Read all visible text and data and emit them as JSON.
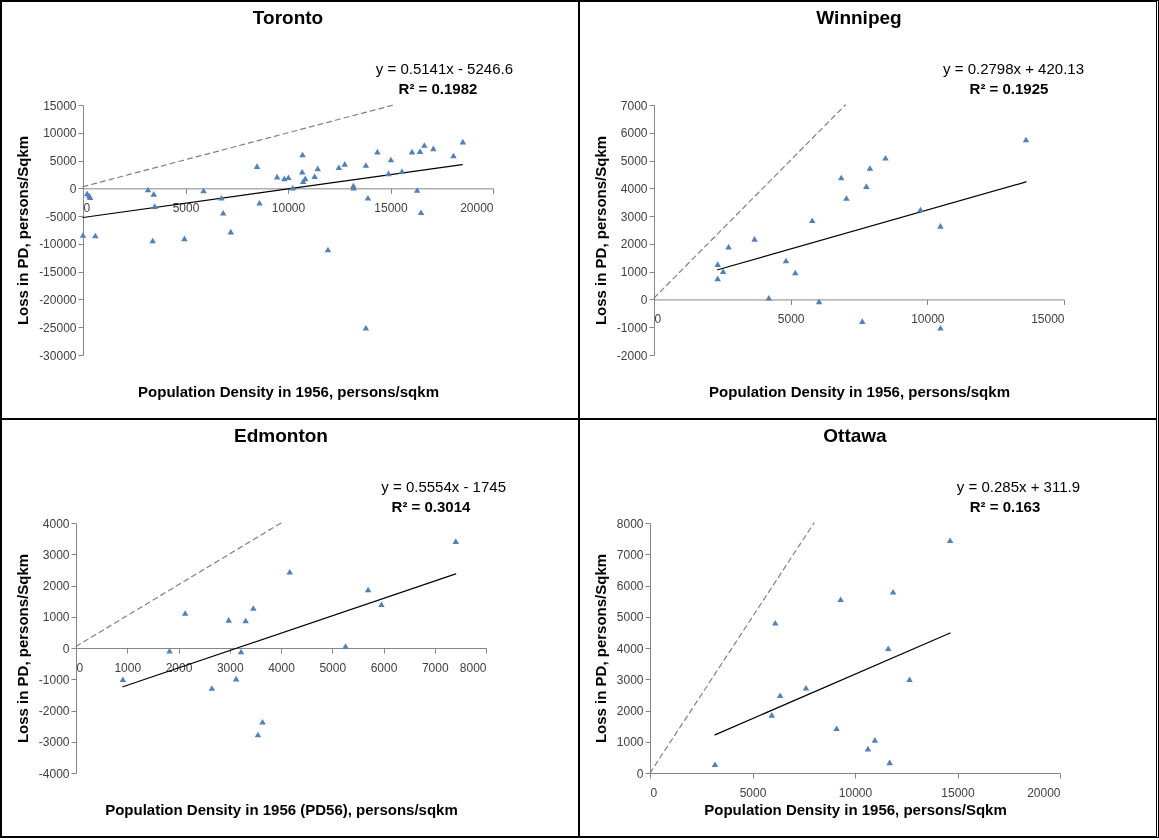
{
  "chart_data": [
    {
      "type": "scatter",
      "title": "Toronto",
      "xlabel": "Population Density in 1956, persons/sqkm",
      "ylabel": "Loss in PD, persons/Sqkm",
      "annotations": [
        "y = 0.5141x - 5246.6",
        "R² = 0.1982"
      ],
      "xlim": [
        0,
        20000
      ],
      "xticks": [
        0,
        5000,
        10000,
        15000,
        20000
      ],
      "ylim": [
        -30000,
        15000
      ],
      "yticks": [
        -30000,
        -25000,
        -20000,
        -15000,
        -10000,
        -5000,
        0,
        5000,
        10000,
        15000
      ],
      "grid": false,
      "series": [
        {
          "marker": "triangle",
          "color": "#4f81bd",
          "x": [
            0,
            200,
            300,
            350,
            600,
            3170,
            3450,
            3500,
            3400,
            4950,
            5880,
            6750,
            6840,
            7210,
            8490,
            8610,
            9470,
            9820,
            10020,
            10230,
            10710,
            10690,
            10740,
            10840,
            11300,
            11450,
            11950,
            12480,
            12770,
            13190,
            13200,
            13800,
            13900,
            13800,
            14360,
            14900,
            15020,
            15560,
            16050,
            16300,
            16440,
            16490,
            16650,
            17090,
            18070,
            18530
          ],
          "values": [
            -8400,
            -900,
            -1300,
            -1600,
            -8500,
            -200,
            -1000,
            -3200,
            -9400,
            -9000,
            -400,
            -1700,
            -4400,
            -7800,
            4000,
            -2600,
            2100,
            1800,
            2000,
            100,
            6100,
            3000,
            1300,
            1800,
            2200,
            3600,
            -11000,
            3800,
            4400,
            500,
            100,
            4200,
            -1700,
            -25100,
            6600,
            2700,
            5200,
            3100,
            6600,
            -300,
            6700,
            -4300,
            7800,
            7200,
            5900,
            8400
          ]
        },
        {
          "type": "line",
          "marker": "none",
          "color": "#000000",
          "line_style": "solid",
          "x": [
            0,
            18500
          ],
          "values": [
            -5250,
            4260
          ]
        },
        {
          "type": "line",
          "marker": "none",
          "color": "#808080",
          "line_style": "dashed",
          "x": [
            0,
            15150
          ],
          "values": [
            300,
            15000
          ]
        }
      ]
    },
    {
      "type": "scatter",
      "title": "Winnipeg",
      "xlabel": "Population Density in 1956, persons/sqkm",
      "ylabel": "Loss in PD, persons/Sqkm",
      "annotations": [
        "y = 0.2798x + 420.13",
        "R² = 0.1925"
      ],
      "xlim": [
        0,
        15000
      ],
      "xticks": [
        0,
        5000,
        10000,
        15000
      ],
      "ylim": [
        -2000,
        7000
      ],
      "yticks": [
        -2000,
        -1000,
        0,
        1000,
        2000,
        3000,
        4000,
        5000,
        6000,
        7000
      ],
      "grid": false,
      "series": [
        {
          "marker": "triangle",
          "color": "#4f81bd",
          "x": [
            2330,
            2530,
            2330,
            2730,
            3680,
            4200,
            4830,
            5170,
            5790,
            6040,
            6850,
            7040,
            7620,
            7770,
            7900,
            8470,
            9750,
            10480,
            10480,
            13610
          ],
          "values": [
            1270,
            1020,
            760,
            1900,
            2180,
            60,
            1400,
            970,
            2850,
            -70,
            4390,
            3650,
            -780,
            4080,
            4730,
            5100,
            3240,
            2650,
            -1020,
            5760
          ]
        },
        {
          "type": "line",
          "marker": "none",
          "color": "#000000",
          "line_style": "solid",
          "x": [
            2330,
            13610
          ],
          "values": [
            1070,
            4230
          ]
        },
        {
          "type": "line",
          "marker": "none",
          "color": "#808080",
          "line_style": "dashed",
          "x": [
            0,
            7000
          ],
          "values": [
            50,
            7000
          ]
        }
      ]
    },
    {
      "type": "scatter",
      "title": "Edmonton",
      "xlabel": "Population Density in 1956 (PD56), persons/sqkm",
      "ylabel": "Loss in PD, persons/Sqkm",
      "annotations": [
        "y = 0.5554x - 1745",
        "R² = 0.3014"
      ],
      "xlim": [
        0,
        8000
      ],
      "xticks": [
        0,
        1000,
        2000,
        3000,
        4000,
        5000,
        6000,
        7000,
        8000
      ],
      "ylim": [
        -4000,
        4000
      ],
      "yticks": [
        -4000,
        -3000,
        -2000,
        -1000,
        0,
        1000,
        2000,
        3000,
        4000
      ],
      "grid": false,
      "series": [
        {
          "marker": "triangle",
          "color": "#4f81bd",
          "x": [
            915,
            1825,
            2130,
            2650,
            2980,
            3125,
            3220,
            3310,
            3460,
            3550,
            3640,
            4170,
            5260,
            5700,
            5960,
            7410
          ],
          "values": [
            -1000,
            -90,
            1120,
            -1280,
            900,
            -980,
            -110,
            880,
            1280,
            -2770,
            -2360,
            2440,
            60,
            1870,
            1400,
            3420
          ]
        },
        {
          "type": "line",
          "marker": "none",
          "color": "#000000",
          "line_style": "solid",
          "x": [
            915,
            7410
          ],
          "values": [
            -1240,
            2370
          ]
        },
        {
          "type": "line",
          "marker": "none",
          "color": "#808080",
          "line_style": "dashed",
          "x": [
            0,
            4000
          ],
          "values": [
            50,
            4000
          ]
        }
      ]
    },
    {
      "type": "scatter",
      "title": "Ottawa",
      "xlabel": "Population Density in 1956, persons/Sqkm",
      "ylabel": "Loss in PD, persons/Sqkm",
      "annotations": [
        "y = 0.285x + 311.9",
        "R² = 0.163"
      ],
      "xlim": [
        0,
        20000
      ],
      "xticks": [
        0,
        5000,
        10000,
        15000,
        20000
      ],
      "ylim": [
        0,
        8000
      ],
      "yticks": [
        0,
        1000,
        2000,
        3000,
        4000,
        5000,
        6000,
        7000,
        8000
      ],
      "grid": false,
      "series": [
        {
          "marker": "triangle",
          "color": "#4f81bd",
          "x": [
            3170,
            5940,
            6110,
            6350,
            7610,
            9100,
            9300,
            10630,
            10970,
            11620,
            11690,
            11860,
            12660,
            14640
          ],
          "values": [
            280,
            1860,
            4810,
            2490,
            2730,
            1430,
            5560,
            780,
            1060,
            3990,
            340,
            5800,
            3000,
            7450
          ]
        },
        {
          "type": "line",
          "marker": "none",
          "color": "#000000",
          "line_style": "solid",
          "x": [
            3170,
            14640
          ],
          "values": [
            1220,
            4480
          ]
        },
        {
          "type": "line",
          "marker": "none",
          "color": "#808080",
          "line_style": "dashed",
          "x": [
            0,
            8000
          ],
          "values": [
            0,
            8000
          ]
        }
      ]
    }
  ]
}
